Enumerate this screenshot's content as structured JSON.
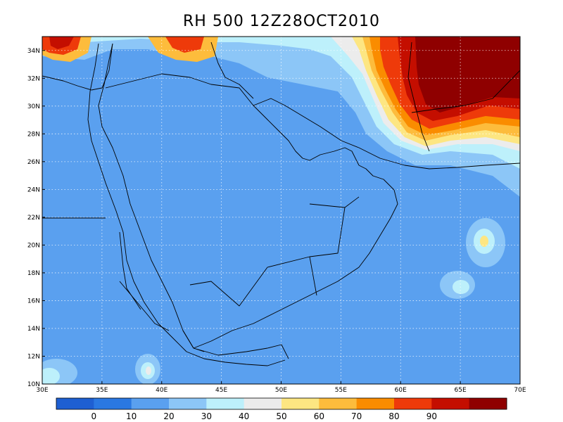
{
  "title": "RH 500 12Z28OCT2010",
  "map": {
    "lon_range": [
      30,
      70
    ],
    "lat_range": [
      10,
      35
    ],
    "x_ticks": [
      {
        "value": 30,
        "label": "30E"
      },
      {
        "value": 35,
        "label": "35E"
      },
      {
        "value": 40,
        "label": "40E"
      },
      {
        "value": 45,
        "label": "45E"
      },
      {
        "value": 50,
        "label": "50E"
      },
      {
        "value": 55,
        "label": "55E"
      },
      {
        "value": 60,
        "label": "60E"
      },
      {
        "value": 65,
        "label": "65E"
      },
      {
        "value": 70,
        "label": "70E"
      }
    ],
    "y_ticks": [
      {
        "value": 10,
        "label": "10N"
      },
      {
        "value": 12,
        "label": "12N"
      },
      {
        "value": 14,
        "label": "14N"
      },
      {
        "value": 16,
        "label": "16N"
      },
      {
        "value": 18,
        "label": "18N"
      },
      {
        "value": 20,
        "label": "20N"
      },
      {
        "value": 22,
        "label": "22N"
      },
      {
        "value": 24,
        "label": "24N"
      },
      {
        "value": 26,
        "label": "26N"
      },
      {
        "value": 28,
        "label": "28N"
      },
      {
        "value": 30,
        "label": "30N"
      },
      {
        "value": 32,
        "label": "32N"
      },
      {
        "value": 34,
        "label": "34N"
      }
    ],
    "gridlines": "dotted",
    "background_rh": 10
  },
  "colorbar": {
    "bins": [
      {
        "color": "#1e5fd2"
      },
      {
        "color": "#2a78e2"
      },
      {
        "color": "#5aa0ef"
      },
      {
        "color": "#8cc6f7"
      },
      {
        "color": "#bdf0fb"
      },
      {
        "color": "#ececec"
      },
      {
        "color": "#fde682"
      },
      {
        "color": "#fdbc3c"
      },
      {
        "color": "#fa8c00"
      },
      {
        "color": "#ee3a0a"
      },
      {
        "color": "#c40e00"
      },
      {
        "color": "#8f0000"
      }
    ],
    "labels": [
      "0",
      "10",
      "20",
      "30",
      "40",
      "50",
      "60",
      "70",
      "80",
      "90"
    ]
  },
  "features": [
    {
      "lon": 65.5,
      "lat": 31,
      "rx": 7,
      "ry": 3.8,
      "rh": 85
    },
    {
      "lon": 67,
      "lat": 33.5,
      "rx": 4,
      "ry": 2,
      "rh": 92
    },
    {
      "lon": 59.5,
      "lat": 30.5,
      "rx": 2.5,
      "ry": 2.5,
      "rh": 90
    },
    {
      "lon": 62.5,
      "lat": 28.5,
      "rx": 1.8,
      "ry": 1.2,
      "rh": 78
    },
    {
      "lon": 31.5,
      "lat": 34.5,
      "rx": 4,
      "ry": 1.6,
      "rh": 82
    },
    {
      "lon": 42.5,
      "lat": 34.7,
      "rx": 3,
      "ry": 0.9,
      "rh": 78
    },
    {
      "lon": 39.5,
      "lat": 11.2,
      "rx": 1.4,
      "ry": 1.2,
      "rh": 45
    },
    {
      "lon": 67.3,
      "lat": 20.4,
      "rx": 1.6,
      "ry": 1.6,
      "rh": 55
    },
    {
      "lon": 65.5,
      "lat": 17,
      "rx": 2.5,
      "ry": 1.6,
      "rh": 35
    },
    {
      "lon": 31,
      "lat": 11.3,
      "rx": 3,
      "ry": 1.4,
      "rh": 35
    }
  ]
}
